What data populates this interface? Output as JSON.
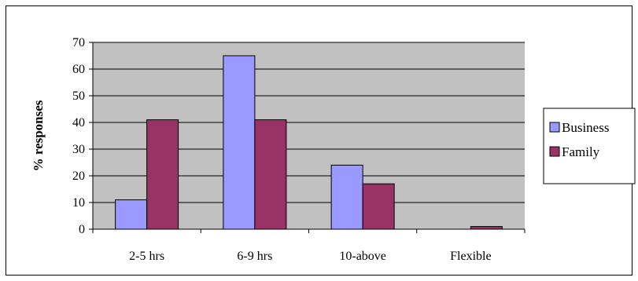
{
  "chart_data": {
    "type": "bar",
    "title": "",
    "xlabel": "",
    "ylabel": "% responses",
    "ylim": [
      0,
      70
    ],
    "yticks": [
      0,
      10,
      20,
      30,
      40,
      50,
      60,
      70
    ],
    "ytick_labels": [
      "0",
      "10",
      "20",
      "30",
      "40",
      "50",
      "60",
      "70"
    ],
    "categories": [
      "2-5 hrs",
      "6-9 hrs",
      "10-above",
      "Flexible"
    ],
    "series": [
      {
        "name": "Business",
        "values": [
          11,
          65,
          24,
          0
        ],
        "color": "#9999ff"
      },
      {
        "name": "Family",
        "values": [
          41,
          41,
          17,
          1
        ],
        "color": "#993366"
      }
    ],
    "grid": true,
    "plot_background": "#c0c0c0",
    "legend_position": "right"
  }
}
